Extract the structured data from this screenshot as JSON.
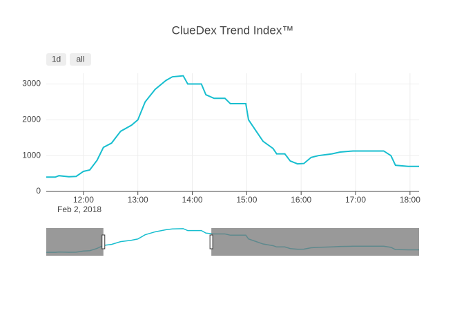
{
  "chart_data": {
    "type": "line",
    "title": "ClueDex Trend Index™",
    "buttons": [
      "1d",
      "all"
    ],
    "date_label": "Feb 2, 2018",
    "x": [
      "2018-02-02 11:19",
      "2018-02-02 11:29",
      "2018-02-02 11:33",
      "2018-02-02 11:44",
      "2018-02-02 11:52",
      "2018-02-02 12:00",
      "2018-02-02 12:07",
      "2018-02-02 12:15",
      "2018-02-02 12:22",
      "2018-02-02 12:31",
      "2018-02-02 12:41",
      "2018-02-02 12:53",
      "2018-02-02 13:00",
      "2018-02-02 13:08",
      "2018-02-02 13:19",
      "2018-02-02 13:31",
      "2018-02-02 13:38",
      "2018-02-02 13:50",
      "2018-02-02 13:55",
      "2018-02-02 14:00",
      "2018-02-02 14:10",
      "2018-02-02 14:15",
      "2018-02-02 14:24",
      "2018-02-02 14:36",
      "2018-02-02 14:42",
      "2018-02-02 14:59",
      "2018-02-02 15:02",
      "2018-02-02 15:10",
      "2018-02-02 15:18",
      "2018-02-02 15:29",
      "2018-02-02 15:33",
      "2018-02-02 15:42",
      "2018-02-02 15:48",
      "2018-02-02 15:56",
      "2018-02-02 16:03",
      "2018-02-02 16:11",
      "2018-02-02 16:19",
      "2018-02-02 16:34",
      "2018-02-02 16:43",
      "2018-02-02 16:57",
      "2018-02-02 17:31",
      "2018-02-02 17:39",
      "2018-02-02 17:44",
      "2018-02-02 17:58",
      "2018-02-02 18:10"
    ],
    "series": [
      {
        "color": "#17becf",
        "values": [
          400,
          400,
          440,
          410,
          420,
          560,
          600,
          870,
          1230,
          1350,
          1680,
          1850,
          2000,
          2500,
          2850,
          3100,
          3200,
          3230,
          3000,
          3000,
          3000,
          2700,
          2600,
          2600,
          2450,
          2450,
          2000,
          1700,
          1400,
          1200,
          1050,
          1050,
          850,
          770,
          780,
          950,
          1000,
          1050,
          1100,
          1130,
          1130,
          1000,
          730,
          700,
          700
        ]
      }
    ],
    "xlim": [
      "2018-02-02 11:19",
      "2018-02-02 18:10"
    ],
    "xticks": [
      {
        "value": "2018-02-02 12:00",
        "label": "12:00"
      },
      {
        "value": "2018-02-02 13:00",
        "label": "13:00"
      },
      {
        "value": "2018-02-02 14:00",
        "label": "14:00"
      },
      {
        "value": "2018-02-02 15:00",
        "label": "15:00"
      },
      {
        "value": "2018-02-02 16:00",
        "label": "16:00"
      },
      {
        "value": "2018-02-02 17:00",
        "label": "17:00"
      },
      {
        "value": "2018-02-02 18:00",
        "label": "18:00"
      }
    ],
    "ylim": [
      0,
      3300
    ],
    "yticks": [
      0,
      1000,
      2000,
      3000
    ],
    "grid": true,
    "rangeslider_range": [
      "2018-02-02 12:22",
      "2018-02-02 14:21"
    ]
  }
}
